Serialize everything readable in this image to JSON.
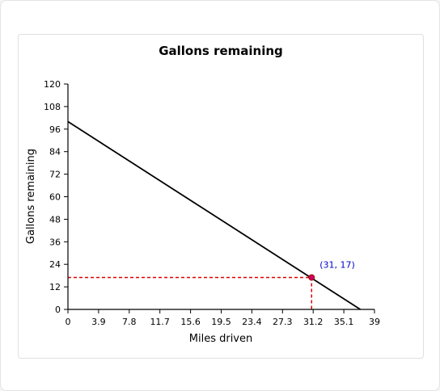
{
  "chart_data": {
    "type": "line",
    "title": "Gallons remaining",
    "xlabel": "Miles driven",
    "ylabel": "Gallons remaining",
    "xlim": [
      0,
      39
    ],
    "ylim": [
      0,
      120
    ],
    "x_ticks": [
      "0",
      "3.9",
      "7.8",
      "11.7",
      "15.6",
      "19.5",
      "23.4",
      "27.3",
      "31.2",
      "35.1",
      "39"
    ],
    "y_ticks": [
      "0",
      "12",
      "24",
      "36",
      "48",
      "60",
      "72",
      "84",
      "96",
      "108",
      "120"
    ],
    "series": [
      {
        "x": [
          0,
          37.2
        ],
        "y": [
          100,
          0
        ]
      }
    ],
    "highlight_point": {
      "x": 31,
      "y": 17,
      "label": "(31, 17)"
    },
    "grid": false,
    "colors": {
      "line": "#000000",
      "point_fill": "#cc0066",
      "point_stroke": "#aa0000",
      "guide": "#dd0000",
      "annotation": "#0000cc"
    }
  }
}
